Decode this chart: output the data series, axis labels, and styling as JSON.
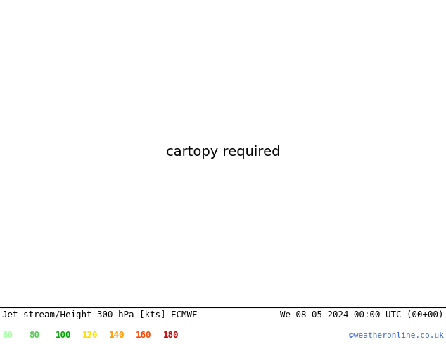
{
  "title_left": "Jet stream/Height 300 hPa [kts] ECMWF",
  "title_right": "We 08-05-2024 00:00 UTC (00+00)",
  "credit": "©weatheronline.co.uk",
  "legend_values": [
    60,
    80,
    100,
    120,
    140,
    160,
    180
  ],
  "legend_colors": [
    "#aaffaa",
    "#55cc55",
    "#00aa00",
    "#ffdd00",
    "#ff9900",
    "#ff4400",
    "#cc0000"
  ],
  "bg_color": "#f0f0f0",
  "land_color": "#e8e8e8",
  "sea_color": "#f8f8f8",
  "title_fontsize": 9,
  "legend_fontsize": 9,
  "figsize": [
    6.34,
    4.9
  ],
  "dpi": 100
}
